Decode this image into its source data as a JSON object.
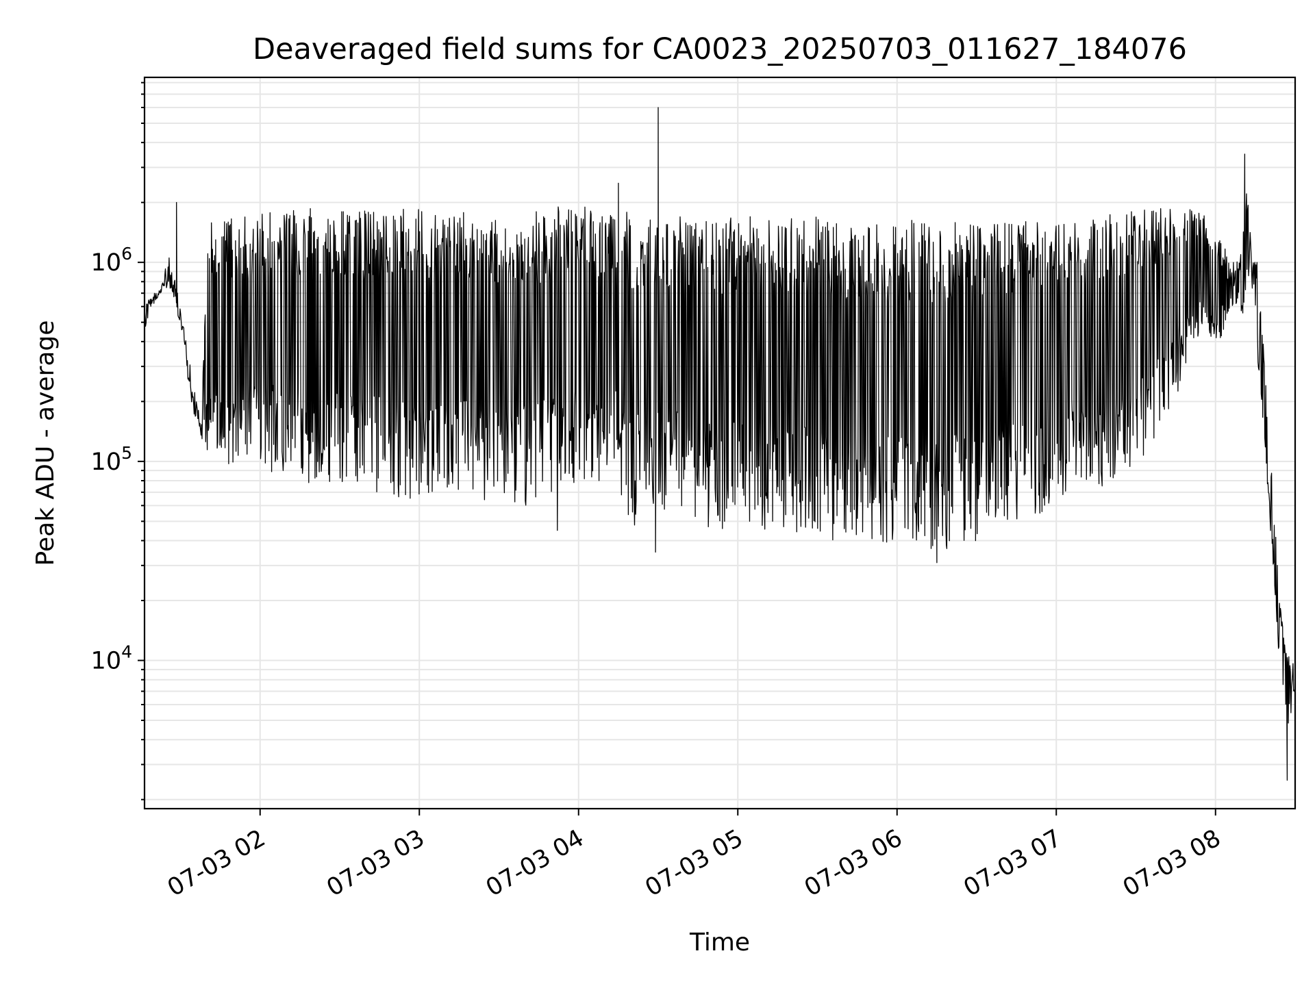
{
  "chart_data": {
    "type": "line",
    "title": "Deaveraged field sums for CA0023_20250703_011627_184076",
    "xlabel": "Time",
    "ylabel": "Peak ADU - average",
    "yscale": "log",
    "grid": true,
    "line_color": "#000000",
    "grid_color": "#e6e6e6",
    "xlim": [
      "2025-07-03 01:16:27",
      "2025-07-03 08:30:00"
    ],
    "ylim": [
      1800,
      8500000
    ],
    "x_ticks": [
      {
        "value": "2025-07-03 02:00",
        "label": "07-03 02"
      },
      {
        "value": "2025-07-03 03:00",
        "label": "07-03 03"
      },
      {
        "value": "2025-07-03 04:00",
        "label": "07-03 04"
      },
      {
        "value": "2025-07-03 05:00",
        "label": "07-03 05"
      },
      {
        "value": "2025-07-03 06:00",
        "label": "07-03 06"
      },
      {
        "value": "2025-07-03 07:00",
        "label": "07-03 07"
      },
      {
        "value": "2025-07-03 08:00",
        "label": "07-03 08"
      }
    ],
    "y_ticks": [
      {
        "value": 10000,
        "base": "10",
        "exp": "4"
      },
      {
        "value": 100000,
        "base": "10",
        "exp": "5"
      },
      {
        "value": 1000000,
        "base": "10",
        "exp": "6"
      }
    ],
    "series": [
      {
        "x": [
          "01:16:27",
          "01:18",
          "01:20",
          "01:22",
          "01:24",
          "01:26",
          "01:28",
          "01:30",
          "01:32",
          "01:34",
          "01:36",
          "01:38",
          "01:40",
          "01:42",
          "01:44",
          "01:46",
          "01:48",
          "01:50",
          "01:52",
          "01:54",
          "01:56",
          "01:58",
          "02:00",
          "02:05",
          "02:10",
          "02:15",
          "02:20",
          "02:25",
          "02:30",
          "02:35",
          "02:40",
          "02:45",
          "02:50",
          "02:55",
          "03:00",
          "03:05",
          "03:10",
          "03:15",
          "03:20",
          "03:25",
          "03:30",
          "03:35",
          "03:40",
          "03:45",
          "03:50",
          "03:55",
          "04:00",
          "04:05",
          "04:10",
          "04:15",
          "04:18",
          "04:20",
          "04:22",
          "04:25",
          "04:28",
          "04:30",
          "04:32",
          "04:35",
          "04:40",
          "04:45",
          "04:50",
          "04:55",
          "05:00",
          "05:05",
          "05:10",
          "05:15",
          "05:20",
          "05:25",
          "05:30",
          "05:35",
          "05:40",
          "05:45",
          "05:50",
          "05:55",
          "06:00",
          "06:05",
          "06:10",
          "06:15",
          "06:20",
          "06:25",
          "06:30",
          "06:35",
          "06:40",
          "06:45",
          "06:50",
          "06:55",
          "07:00",
          "07:05",
          "07:10",
          "07:15",
          "07:20",
          "07:25",
          "07:30",
          "07:35",
          "07:40",
          "07:45",
          "07:50",
          "07:55",
          "08:00",
          "08:03",
          "08:06",
          "08:08",
          "08:10",
          "08:12",
          "08:14",
          "08:16",
          "08:18",
          "08:20",
          "08:22",
          "08:24",
          "08:26",
          "08:28",
          "08:30"
        ],
        "upper": [
          600000,
          650000,
          700000,
          720000,
          900000,
          1100000,
          800000,
          600000,
          420000,
          300000,
          200000,
          160000,
          1500000,
          1600000,
          1700000,
          1750000,
          1750000,
          1750000,
          1750000,
          1700000,
          1750000,
          1800000,
          1800000,
          1800000,
          1750000,
          1900000,
          1900000,
          1850000,
          1800000,
          1850000,
          1850000,
          1850000,
          1900000,
          1850000,
          1850000,
          1800000,
          1800000,
          1800000,
          1800000,
          1750000,
          1750000,
          1800000,
          1800000,
          1800000,
          1900000,
          1900000,
          1950000,
          1850000,
          1800000,
          1800000,
          2100000,
          1750000,
          1700000,
          1700000,
          1650000,
          1700000,
          1700000,
          1700000,
          1700000,
          1700000,
          1650000,
          1700000,
          1700000,
          1700000,
          1700000,
          1700000,
          1700000,
          1700000,
          1700000,
          1650000,
          1650000,
          1600000,
          1600000,
          1600000,
          1600000,
          1650000,
          1600000,
          1600000,
          1600000,
          1600000,
          1600000,
          1600000,
          1600000,
          1650000,
          1650000,
          1700000,
          1700000,
          1750000,
          1750000,
          1800000,
          1850000,
          1900000,
          1900000,
          1950000,
          1950000,
          1900000,
          1850000,
          1800000,
          1500000,
          1200000,
          1100000,
          1000000,
          1200000,
          2500000,
          1000000,
          1000000,
          400000,
          150000,
          60000,
          22000,
          12000,
          11000,
          9000
        ],
        "lower": [
          450000,
          550000,
          600000,
          650000,
          700000,
          700000,
          600000,
          480000,
          300000,
          200000,
          150000,
          120000,
          100000,
          100000,
          100000,
          100000,
          95000,
          90000,
          90000,
          85000,
          90000,
          90000,
          90000,
          85000,
          85000,
          80000,
          75000,
          75000,
          70000,
          70000,
          70000,
          70000,
          65000,
          65000,
          65000,
          65000,
          65000,
          65000,
          65000,
          60000,
          60000,
          60000,
          60000,
          60000,
          70000,
          75000,
          80000,
          80000,
          80000,
          80000,
          40000,
          45000,
          50000,
          60000,
          60000,
          60000,
          55000,
          55000,
          50000,
          45000,
          45000,
          45000,
          45000,
          45000,
          45000,
          45000,
          40000,
          40000,
          40000,
          40000,
          40000,
          40000,
          40000,
          38000,
          38000,
          36000,
          36000,
          36000,
          36000,
          38000,
          40000,
          45000,
          50000,
          50000,
          50000,
          55000,
          60000,
          65000,
          65000,
          70000,
          70000,
          80000,
          95000,
          110000,
          140000,
          200000,
          350000,
          400000,
          350000,
          450000,
          600000,
          600000,
          500000,
          800000,
          700000,
          300000,
          150000,
          60000,
          25000,
          9000,
          5000,
          4500,
          6000
        ]
      }
    ],
    "notable_points": [
      {
        "x": "01:28:30",
        "y": 2000000
      },
      {
        "x": "03:52",
        "y": 45000
      },
      {
        "x": "04:15",
        "y": 2500000
      },
      {
        "x": "04:29",
        "y": 35000
      },
      {
        "x": "04:30",
        "y": 6000000
      },
      {
        "x": "06:15",
        "y": 31000
      },
      {
        "x": "08:11",
        "y": 3500000
      },
      {
        "x": "08:27",
        "y": 2500
      }
    ]
  }
}
